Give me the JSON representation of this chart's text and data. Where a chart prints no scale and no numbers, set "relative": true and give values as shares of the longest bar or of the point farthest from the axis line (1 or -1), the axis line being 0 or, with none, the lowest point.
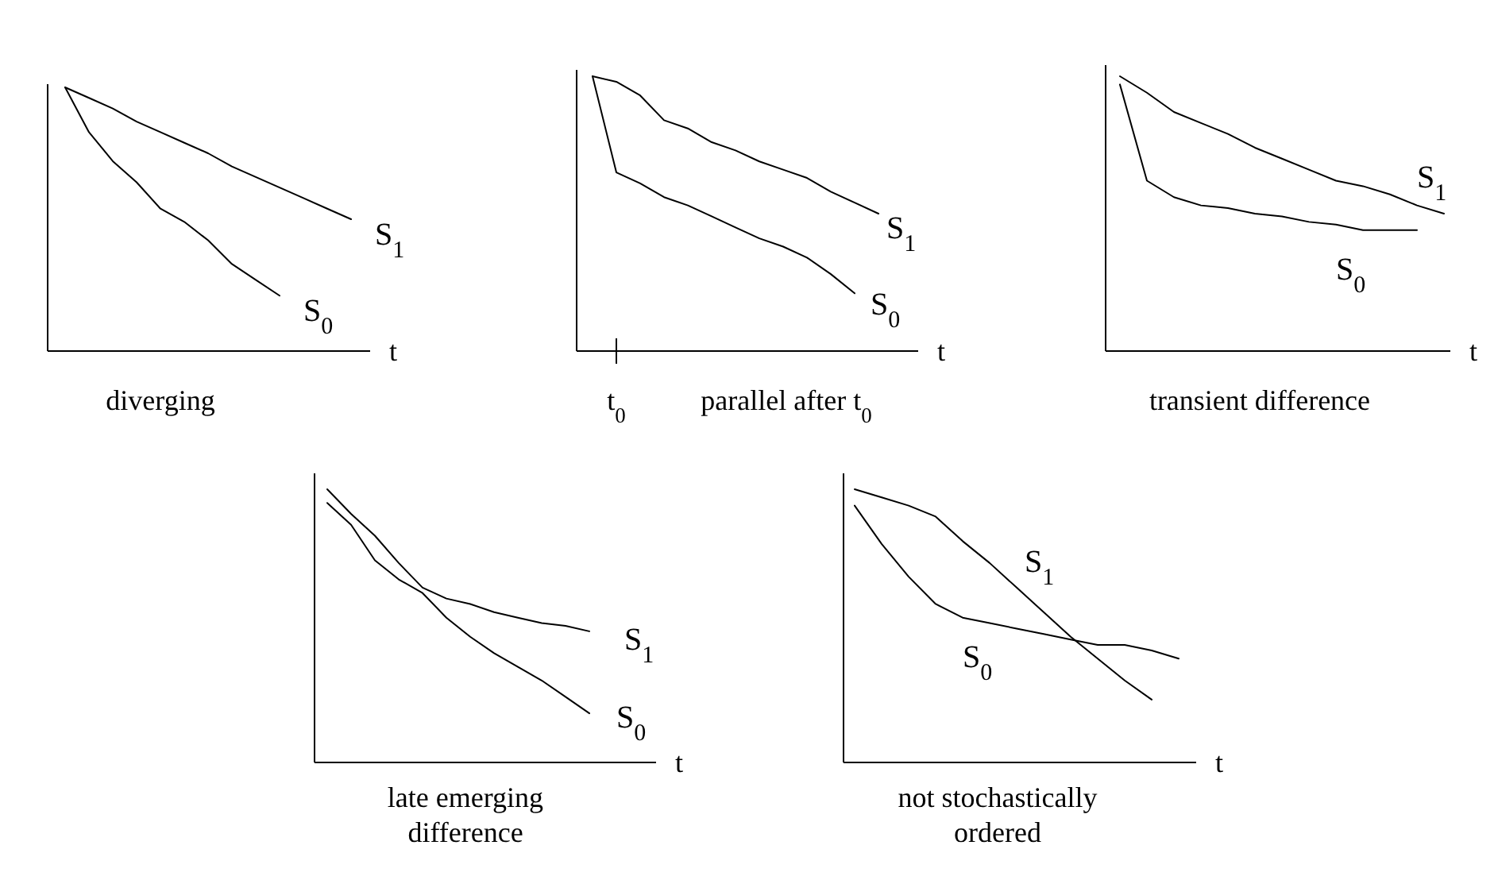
{
  "chart_data": [
    {
      "type": "line",
      "relative": true,
      "xlabel": "t",
      "categories": [
        null,
        null,
        null,
        null,
        null,
        null,
        null,
        null,
        null,
        null,
        null,
        null,
        null
      ],
      "annotations": [
        "diverging"
      ],
      "series": [
        {
          "name": "S$_{1}$",
          "color": "#000000",
          "values": [
            1,
            0.96,
            0.92,
            0.87,
            0.83,
            0.79,
            0.75,
            0.7,
            0.66,
            0.62,
            0.58,
            0.54,
            0.5
          ]
        },
        {
          "name": "S$_{0}$",
          "color": "#000000",
          "values": [
            1,
            0.83,
            0.72,
            0.64,
            0.54,
            0.49,
            0.42,
            0.33,
            0.27,
            0.21,
            null,
            null,
            null
          ]
        }
      ]
    },
    {
      "type": "line",
      "relative": true,
      "xlabel": "t",
      "categories": [
        null,
        null,
        null,
        null,
        null,
        null,
        null,
        null,
        null,
        null,
        null,
        null,
        null
      ],
      "annotations": [
        "t$_{0}$",
        "parallel after t$_{0}$"
      ],
      "series": [
        {
          "name": "S$_{1}$",
          "color": "#000000",
          "values": [
            1,
            0.98,
            0.93,
            0.84,
            0.81,
            0.76,
            0.73,
            0.69,
            0.66,
            0.63,
            0.58,
            0.54,
            0.5
          ]
        },
        {
          "name": "S$_{0}$",
          "color": "#000000",
          "values": [
            1,
            0.65,
            0.61,
            0.56,
            0.53,
            0.49,
            0.45,
            0.41,
            0.38,
            0.34,
            0.28,
            0.21,
            null
          ]
        }
      ]
    },
    {
      "type": "line",
      "relative": true,
      "xlabel": "t",
      "categories": [
        null,
        null,
        null,
        null,
        null,
        null,
        null,
        null,
        null,
        null,
        null,
        null,
        null
      ],
      "annotations": [
        "transient difference"
      ],
      "series": [
        {
          "name": "S$_{1}$",
          "color": "#000000",
          "values": [
            1,
            0.94,
            0.87,
            0.83,
            0.79,
            0.74,
            0.7,
            0.66,
            0.62,
            0.6,
            0.57,
            0.53,
            0.5
          ]
        },
        {
          "name": "S$_{0}$",
          "color": "#000000",
          "values": [
            0.97,
            0.62,
            0.56,
            0.53,
            0.52,
            0.5,
            0.49,
            0.47,
            0.46,
            0.44,
            0.44,
            0.44,
            null
          ]
        }
      ]
    },
    {
      "type": "line",
      "relative": true,
      "xlabel": "t",
      "categories": [
        null,
        null,
        null,
        null,
        null,
        null,
        null,
        null,
        null,
        null,
        null,
        null,
        null
      ],
      "annotations": [
        "late emerging\ndifference"
      ],
      "series": [
        {
          "name": "S$_{1}$",
          "color": "#000000",
          "values": [
            1,
            0.91,
            0.83,
            0.73,
            0.64,
            0.6,
            0.58,
            0.55,
            0.53,
            0.51,
            0.5,
            0.48,
            null
          ]
        },
        {
          "name": "S$_{0}$",
          "color": "#000000",
          "values": [
            0.95,
            0.87,
            0.74,
            0.67,
            0.62,
            0.53,
            0.46,
            0.4,
            0.35,
            0.3,
            0.24,
            0.18,
            null
          ]
        }
      ]
    },
    {
      "type": "line",
      "relative": true,
      "xlabel": "t",
      "categories": [
        null,
        null,
        null,
        null,
        null,
        null,
        null,
        null,
        null,
        null,
        null,
        null,
        null
      ],
      "annotations": [
        "not stochastically\nordered"
      ],
      "series": [
        {
          "name": "S$_{1}$",
          "color": "#000000",
          "values": [
            1,
            0.97,
            0.94,
            0.9,
            0.81,
            0.73,
            0.64,
            0.55,
            0.46,
            0.38,
            0.3,
            0.23,
            null
          ]
        },
        {
          "name": "S$_{0}$",
          "color": "#000000",
          "values": [
            0.94,
            0.8,
            0.68,
            0.58,
            0.53,
            0.51,
            0.49,
            0.47,
            0.45,
            0.43,
            0.43,
            0.41,
            0.38
          ]
        }
      ]
    }
  ]
}
